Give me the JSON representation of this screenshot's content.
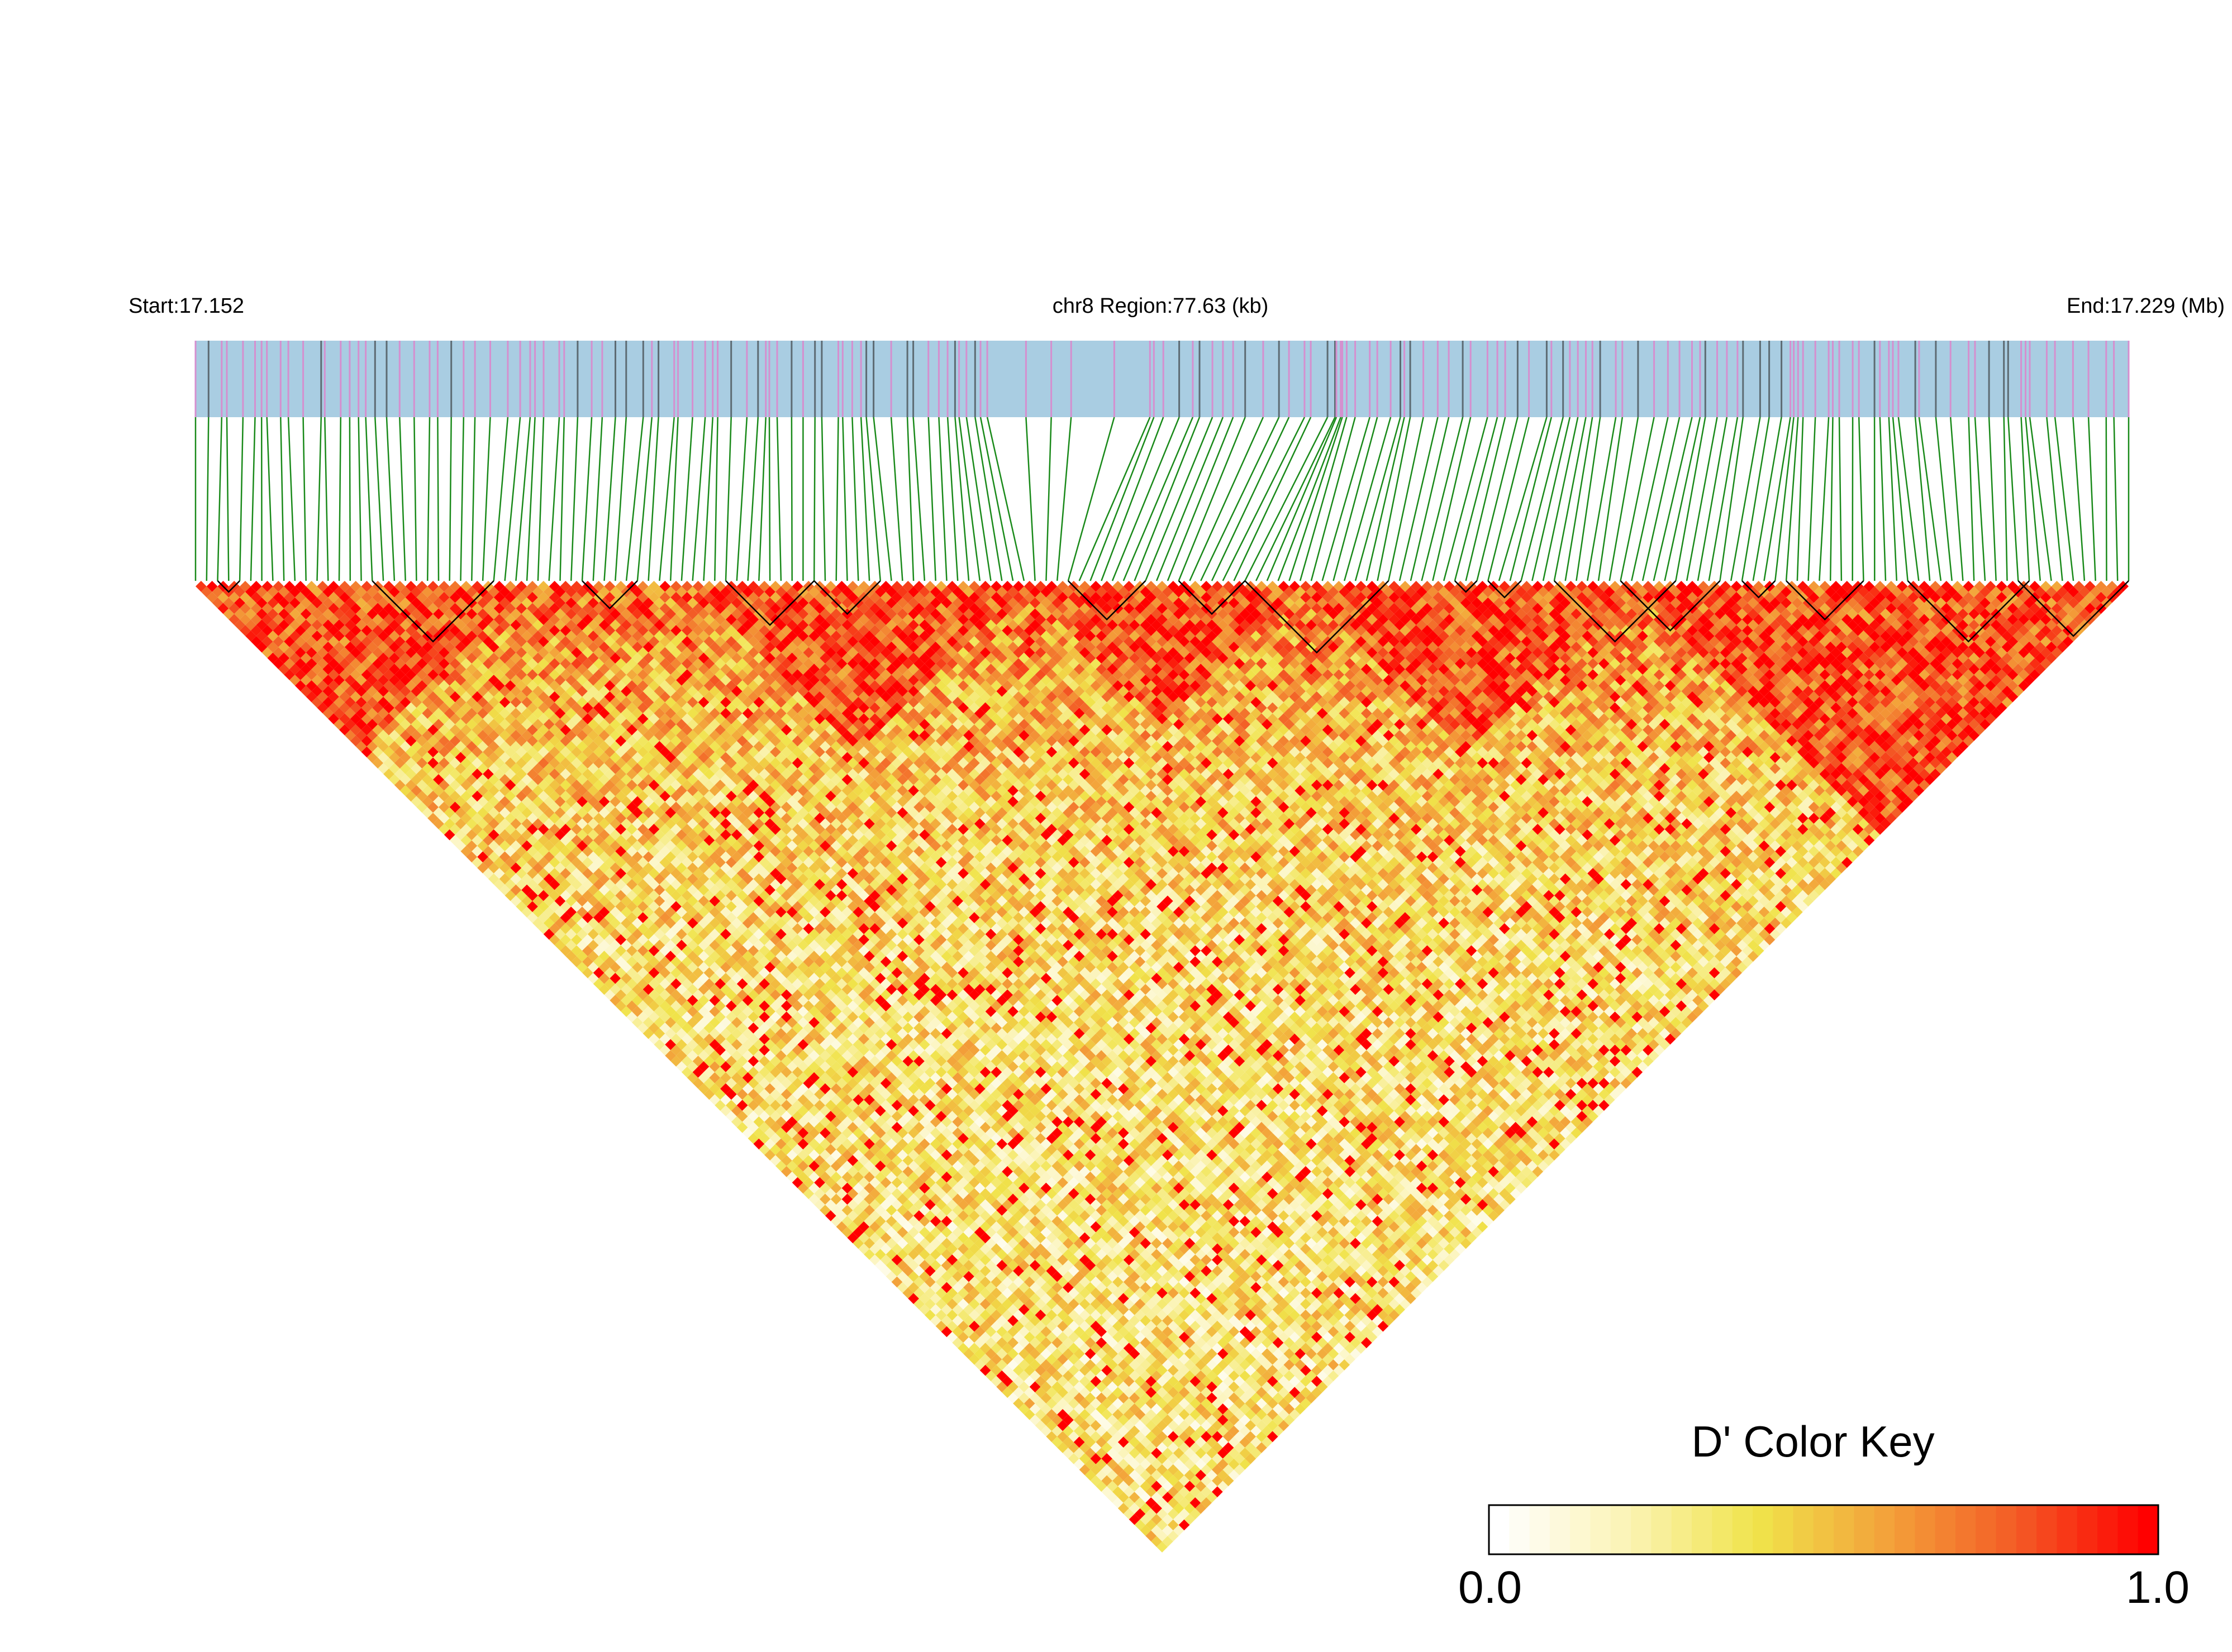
{
  "chart_data": {
    "type": "heatmap",
    "subtype": "ld-triangle",
    "header": {
      "start_label": "Start:17.152",
      "region_label": "chr8 Region:77.63 (kb)",
      "end_label": "End:17.229 (Mb)"
    },
    "region": {
      "chromosome": "chr8",
      "start_mb": 17.152,
      "end_mb": 17.229,
      "length_kb": 77.63
    },
    "snp_count": 176,
    "matrix_seed": 20240917,
    "track_colors": {
      "background": "#a9cde2",
      "snp_line_pink": "#d58fcf",
      "snp_line_dark": "#5d6b73",
      "connector": "#1a8a1a",
      "block_outline": "#000000"
    },
    "haplotype_blocks": [
      {
        "from": 2,
        "to": 4
      },
      {
        "from": 18,
        "to": 31
      },
      {
        "from": 40,
        "to": 46
      },
      {
        "from": 55,
        "to": 64
      },
      {
        "from": 64,
        "to": 71
      },
      {
        "from": 90,
        "to": 98
      },
      {
        "from": 102,
        "to": 108
      },
      {
        "from": 108,
        "to": 123
      },
      {
        "from": 130,
        "to": 132
      },
      {
        "from": 134,
        "to": 137
      },
      {
        "from": 141,
        "to": 153
      },
      {
        "from": 147,
        "to": 158
      },
      {
        "from": 160,
        "to": 163
      },
      {
        "from": 165,
        "to": 173
      },
      {
        "from": 177,
        "to": 190
      },
      {
        "from": 188,
        "to": 200
      }
    ],
    "color_key": {
      "title": "D' Color Key",
      "min_label": "0.0",
      "max_label": "1.0",
      "min": 0.0,
      "max": 1.0,
      "stops": [
        "#ffffff",
        "#fbf3b4",
        "#f0e34a",
        "#f3a13a",
        "#f35a25",
        "#ff0000"
      ],
      "bins": 33
    }
  }
}
